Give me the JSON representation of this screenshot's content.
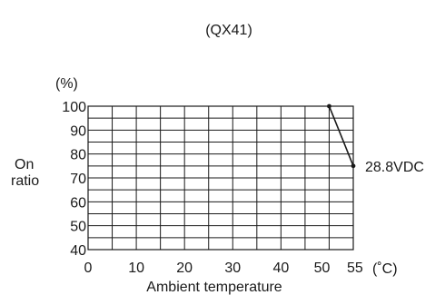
{
  "chart_data": {
    "type": "line",
    "title": "(QX41)",
    "xlabel": "Ambient temperature",
    "x_unit": "(˚C)",
    "ylabel_lines": [
      "On",
      "ratio"
    ],
    "y_unit": "(%)",
    "xlim": [
      0,
      55
    ],
    "ylim": [
      40,
      100
    ],
    "x_ticks": [
      0,
      10,
      20,
      30,
      40,
      50,
      55
    ],
    "x_tick_labels": [
      "0",
      "10",
      "20",
      "30",
      "40",
      "50",
      "55"
    ],
    "y_ticks": [
      40,
      50,
      60,
      70,
      80,
      90,
      100
    ],
    "y_tick_labels": [
      "40",
      "50",
      "60",
      "70",
      "80",
      "90",
      "100"
    ],
    "grid": true,
    "series": [
      {
        "name": "28.8VDC",
        "x": [
          50,
          55
        ],
        "y": [
          100,
          75
        ]
      }
    ]
  }
}
